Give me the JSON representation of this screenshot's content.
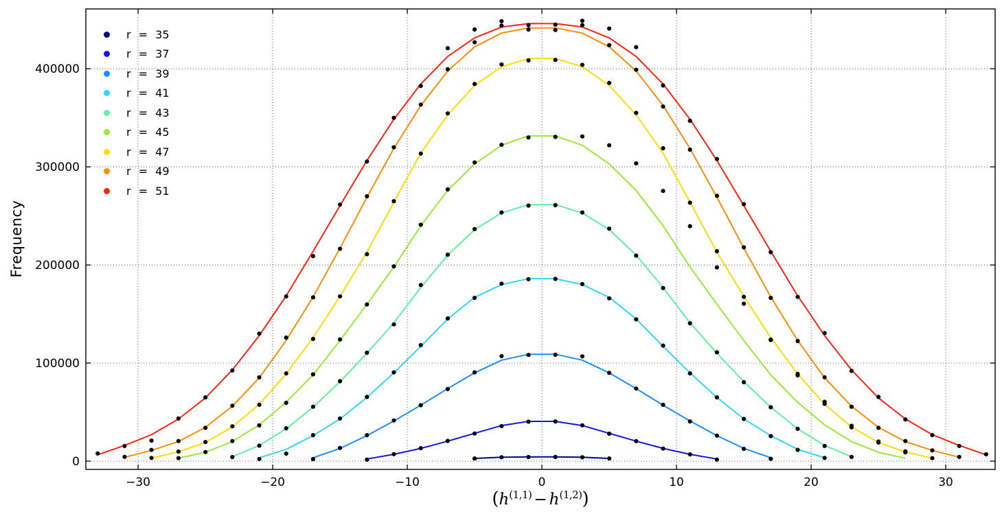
{
  "axes": {
    "ylabel": "Frequency",
    "xlabel_parts": {
      "open": "(",
      "h1": "h",
      "sup1": "(1,1)",
      "minus": "−",
      "h2": "h",
      "sup2": "(1,2)",
      "close": ")"
    },
    "xtick_labels": [
      "−30",
      "−20",
      "−10",
      "0",
      "10",
      "20",
      "30"
    ],
    "ytick_labels": [
      "0",
      "100000",
      "200000",
      "300000",
      "400000"
    ]
  },
  "chart_data": {
    "type": "line",
    "title": "",
    "xlabel": "(h^(1,1) - h^(1,2))",
    "ylabel": "Frequency",
    "xlim": [
      -33.88,
      33.67
    ],
    "ylim": [
      -8400,
      461000
    ],
    "xticks": [
      -30,
      -20,
      -10,
      0,
      10,
      20,
      30
    ],
    "yticks": [
      0,
      100000,
      200000,
      300000,
      400000
    ],
    "grid": true,
    "grid_style": "dotted",
    "legend_position": "upper left",
    "marker_color": "#000000",
    "series": [
      {
        "r": 35,
        "label": "r = 35",
        "color": "#000091",
        "x": [
          -5,
          -3,
          -1,
          1,
          3,
          5
        ],
        "y_fit": [
          2800,
          4000,
          4300,
          4300,
          4000,
          2800
        ],
        "y_data": [
          2700,
          3950,
          4200,
          4250,
          3950,
          2750
        ]
      },
      {
        "r": 37,
        "label": "r = 37",
        "color": "#1414f0",
        "x": [
          -13,
          -11,
          -9,
          -7,
          -5,
          -3,
          -1,
          1,
          3,
          5,
          7,
          9,
          11,
          13
        ],
        "y_fit": [
          2200,
          7000,
          13000,
          20400,
          28400,
          36300,
          40600,
          40600,
          36300,
          28400,
          20400,
          13000,
          7000,
          2200
        ],
        "y_data": [
          1500,
          7100,
          13200,
          20600,
          28200,
          35700,
          40300,
          40500,
          36500,
          28000,
          20400,
          12800,
          6900,
          1600
        ]
      },
      {
        "r": 39,
        "label": "r = 39",
        "color": "#1e8fff",
        "x": [
          -17,
          -15,
          -13,
          -11,
          -9,
          -7,
          -5,
          -3,
          -1,
          1,
          3,
          5,
          7,
          9,
          11,
          13,
          15,
          17
        ],
        "y_fit": [
          3500,
          13000,
          26000,
          41000,
          57000,
          74000,
          90000,
          103000,
          109000,
          109000,
          103000,
          90000,
          74000,
          57000,
          41000,
          26000,
          13000,
          3500
        ],
        "y_data": [
          2100,
          13500,
          26500,
          41500,
          57000,
          73500,
          90500,
          107000,
          108300,
          108500,
          106800,
          90000,
          74000,
          57500,
          40500,
          26000,
          12500,
          2400
        ]
      },
      {
        "r": 41,
        "label": "r = 41",
        "color": "#37d4fa",
        "x": [
          -21,
          -19,
          -17,
          -15,
          -13,
          -11,
          -9,
          -7,
          -5,
          -3,
          -1,
          1,
          3,
          5,
          7,
          9,
          11,
          13,
          15,
          17,
          19,
          21
        ],
        "y_fit": [
          3500,
          12000,
          26000,
          43000,
          65000,
          90000,
          117000,
          145000,
          167000,
          180000,
          186000,
          186000,
          180000,
          167000,
          145000,
          117000,
          90000,
          65000,
          43000,
          26000,
          12000,
          3500
        ],
        "y_data": [
          2200,
          7700,
          26500,
          43500,
          65500,
          90500,
          118300,
          145500,
          166500,
          181000,
          185500,
          185800,
          180500,
          166000,
          144500,
          117800,
          89500,
          65000,
          43000,
          25500,
          11500,
          3300
        ]
      },
      {
        "r": 43,
        "label": "r = 43",
        "color": "#63eea4",
        "x": [
          -23,
          -21,
          -19,
          -17,
          -15,
          -13,
          -11,
          -9,
          -7,
          -5,
          -3,
          -1,
          1,
          3,
          5,
          7,
          9,
          11,
          13,
          15,
          17,
          19,
          21,
          23
        ],
        "y_fit": [
          4500,
          16000,
          33000,
          55000,
          81000,
          110000,
          141000,
          177000,
          210000,
          236000,
          253000,
          261500,
          261500,
          253000,
          236000,
          210000,
          177000,
          141000,
          110000,
          81000,
          55000,
          33000,
          16000,
          4500
        ],
        "y_data": [
          4200,
          15800,
          33500,
          55500,
          81500,
          110500,
          139400,
          179600,
          210500,
          236500,
          253500,
          260500,
          261000,
          253500,
          237000,
          209500,
          176500,
          140500,
          111000,
          80500,
          55000,
          33000,
          15500,
          4300
        ]
      },
      {
        "r": 45,
        "label": "r = 45",
        "color": "#99e83c",
        "x": [
          -27,
          -25,
          -23,
          -21,
          -19,
          -17,
          -15,
          -13,
          -11,
          -9,
          -7,
          -5,
          -3,
          -1,
          1,
          3,
          5,
          7,
          9,
          11,
          13,
          15,
          17,
          19,
          21,
          23,
          25,
          27
        ],
        "y_fit": [
          3000,
          9000,
          20000,
          37000,
          60000,
          88000,
          123000,
          160000,
          198000,
          240000,
          276000,
          303000,
          322000,
          331500,
          331500,
          322000,
          303000,
          276000,
          240000,
          198000,
          160000,
          123000,
          88000,
          60000,
          37000,
          20000,
          9000,
          3000
        ],
        "y_data": [
          3100,
          9300,
          20500,
          36500,
          59500,
          88500,
          124000,
          159800,
          198600,
          241000,
          277000,
          304500,
          322500,
          330000,
          330500,
          331000,
          322000,
          303500,
          275500,
          239500,
          197500,
          160500,
          123500,
          87500,
          60500,
          36000,
          20000,
          9000
        ]
      },
      {
        "r": 47,
        "label": "r = 47",
        "color": "#ffdc0a",
        "x": [
          -29,
          -27,
          -25,
          -23,
          -21,
          -19,
          -17,
          -15,
          -13,
          -11,
          -9,
          -7,
          -5,
          -3,
          -1,
          1,
          3,
          5,
          7,
          9,
          11,
          13,
          15,
          17,
          19,
          21,
          23,
          25,
          27,
          29
        ],
        "y_fit": [
          3000,
          9500,
          19000,
          35000,
          58000,
          89000,
          126000,
          168000,
          213000,
          264000,
          314000,
          353000,
          383000,
          402000,
          410500,
          410500,
          402000,
          383000,
          353000,
          314000,
          264000,
          213000,
          168000,
          126000,
          89000,
          58000,
          35000,
          19000,
          9500,
          3000
        ],
        "y_data": [
          3300,
          9800,
          19500,
          35500,
          57500,
          89500,
          124600,
          168000,
          211000,
          265000,
          313500,
          354500,
          384500,
          404500,
          408500,
          409000,
          404000,
          385500,
          355000,
          319000,
          263500,
          214000,
          167500,
          124000,
          89000,
          58500,
          34500,
          19000,
          10000,
          3100
        ]
      },
      {
        "r": 49,
        "label": "r = 49",
        "color": "#ff8d0a",
        "x": [
          -31,
          -29,
          -27,
          -25,
          -23,
          -21,
          -19,
          -17,
          -15,
          -13,
          -11,
          -9,
          -7,
          -5,
          -3,
          -1,
          1,
          3,
          5,
          7,
          9,
          11,
          13,
          15,
          17,
          19,
          21,
          23,
          25,
          27,
          29,
          31
        ],
        "y_fit": [
          4000,
          11000,
          20000,
          34500,
          56000,
          85000,
          123000,
          167400,
          217200,
          269000,
          318700,
          362600,
          397700,
          422300,
          436400,
          441600,
          441600,
          436400,
          422300,
          397700,
          362600,
          318700,
          269000,
          217200,
          167400,
          123000,
          85000,
          56000,
          34500,
          20000,
          11000,
          4000
        ],
        "y_data": [
          4400,
          11500,
          20500,
          34000,
          56500,
          85500,
          126000,
          167000,
          216500,
          270000,
          320000,
          363500,
          399500,
          427000,
          444000,
          440000,
          439500,
          444500,
          424000,
          399000,
          361500,
          317500,
          270500,
          218000,
          166500,
          122500,
          85500,
          55500,
          34000,
          20500,
          11000,
          4300
        ]
      },
      {
        "r": 51,
        "label": "r = 51",
        "color": "#fe2412",
        "x": [
          -33,
          -31,
          -29,
          -27,
          -25,
          -23,
          -21,
          -19,
          -17,
          -15,
          -13,
          -11,
          -9,
          -7,
          -5,
          -3,
          -1,
          1,
          3,
          5,
          7,
          9,
          11,
          13,
          15,
          17,
          19,
          21,
          23,
          25,
          27,
          29,
          31,
          33
        ],
        "y_fit": [
          6500,
          16000,
          27000,
          43000,
          64500,
          93000,
          128000,
          168500,
          214000,
          260500,
          306500,
          348500,
          384500,
          412500,
          431500,
          442500,
          446000,
          446000,
          442500,
          431500,
          412500,
          384500,
          348500,
          306500,
          260500,
          214000,
          168500,
          128000,
          93000,
          64500,
          43000,
          27000,
          16000,
          6500
        ],
        "y_data": [
          7800,
          15500,
          21000,
          43500,
          65000,
          92500,
          130000,
          168000,
          209000,
          261500,
          305500,
          350000,
          382500,
          421000,
          440000,
          448500,
          444500,
          445000,
          449000,
          441000,
          422000,
          383000,
          347000,
          308000,
          262000,
          213000,
          167500,
          130500,
          92000,
          65500,
          42500,
          26500,
          15500,
          7000
        ]
      }
    ]
  }
}
